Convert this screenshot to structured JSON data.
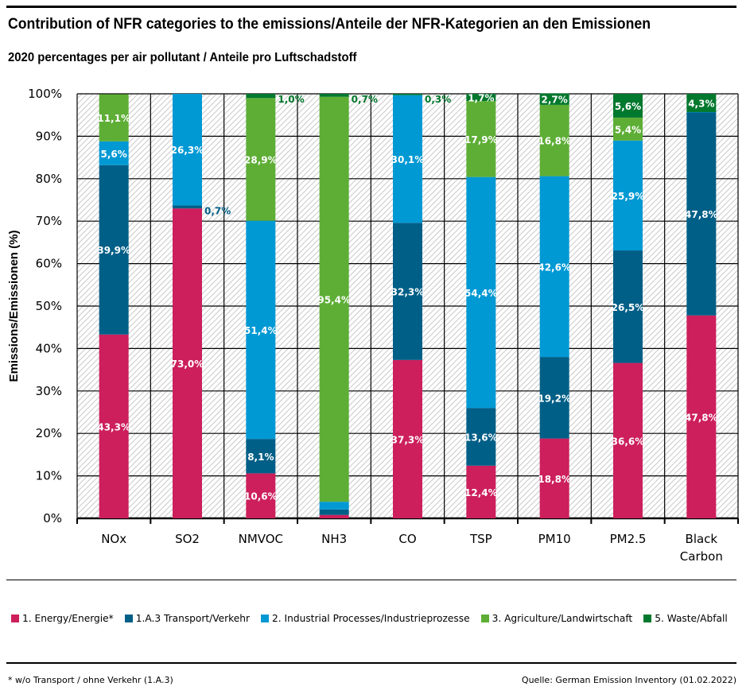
{
  "header": {
    "title": "Contribution of NFR categories to the emissions/Anteile der NFR-Kategorien an den Emissionen",
    "subtitle": "2020 percentages per air pollutant / Anteile pro Luftschadstoff"
  },
  "footer": {
    "footnote": "* w/o Transport / ohne Verkehr (1.A.3)",
    "source": "Quelle: German Emission Inventory (01.02.2022)"
  },
  "chart_data": {
    "type": "bar",
    "stacked": true,
    "title": "Contribution of NFR categories to the emissions/Anteile der NFR-Kategorien an den Emissionen",
    "subtitle": "2020 percentages per air pollutant / Anteile pro Luftschadstoff",
    "xlabel": "",
    "ylabel": "Emissions/Emissionen (%)",
    "ylim": [
      0,
      100
    ],
    "yticks": [
      "0%",
      "10%",
      "20%",
      "30%",
      "40%",
      "50%",
      "60%",
      "70%",
      "80%",
      "90%",
      "100%"
    ],
    "grid": true,
    "legend_position": "bottom",
    "categories": [
      "NOx",
      "SO2",
      "NMVOC",
      "NH3",
      "CO",
      "TSP",
      "PM10",
      "PM2.5",
      "Black Carbon"
    ],
    "series": [
      {
        "name": "1. Energy/Energie*",
        "color": "#cc1f5c",
        "values": [
          43.3,
          73.0,
          10.6,
          0.8,
          37.3,
          12.4,
          18.8,
          36.6,
          47.8
        ],
        "labels": [
          "43,3%",
          "73,0%",
          "10,6%",
          "",
          "37,3%",
          "12,4%",
          "18,8%",
          "36,6%",
          "47,8%"
        ]
      },
      {
        "name": "1.A.3 Transport/Verkehr",
        "color": "#005f87",
        "values": [
          39.9,
          0.7,
          8.1,
          1.3,
          32.3,
          13.6,
          19.2,
          26.5,
          47.8
        ],
        "labels": [
          "39,9%",
          "0,7%",
          "8,1%",
          "",
          "32,3%",
          "13,6%",
          "19,2%",
          "26,5%",
          "47,8%"
        ]
      },
      {
        "name": "2. Industrial Processes/Industrieprozesse",
        "color": "#0099d4",
        "values": [
          5.6,
          26.3,
          51.4,
          1.8,
          30.1,
          54.4,
          42.6,
          25.9,
          0.1
        ],
        "labels": [
          "5,6%",
          "26,3%",
          "51,4%",
          "",
          "30,1%",
          "54,4%",
          "42,6%",
          "25,9%",
          ""
        ]
      },
      {
        "name": "3. Agriculture/Landwirtschaft",
        "color": "#5eae36",
        "values": [
          11.1,
          0.0,
          28.9,
          95.4,
          0.0,
          17.9,
          16.8,
          5.4,
          0.0
        ],
        "labels": [
          "11,1%",
          "",
          "28,9%",
          "95,4%",
          "",
          "17,9%",
          "16,8%",
          "5,4%",
          ""
        ]
      },
      {
        "name": "5. Waste/Abfall",
        "color": "#00782d",
        "values": [
          0.0,
          0.0,
          1.0,
          0.7,
          0.3,
          1.7,
          2.7,
          5.6,
          4.3
        ],
        "labels": [
          "",
          "",
          "1,0%",
          "0,7%",
          "0,3%",
          "1,7%",
          "2,7%",
          "5,6%",
          "4,3%"
        ]
      }
    ]
  }
}
